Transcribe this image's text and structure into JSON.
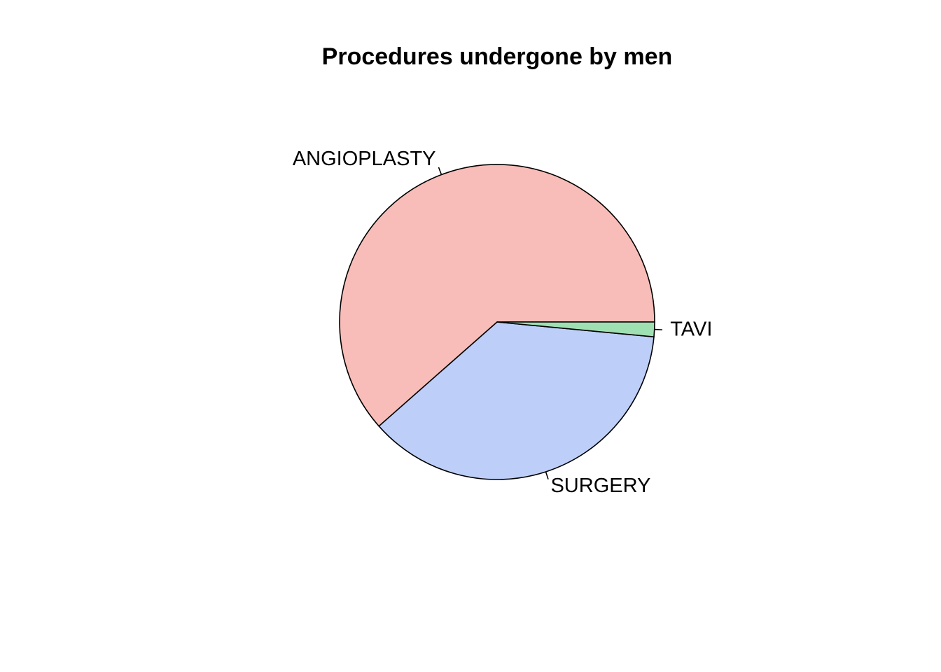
{
  "chart_data": {
    "type": "pie",
    "title": "Procedures undergone by men",
    "categories": [
      "ANGIOPLASTY",
      "SURGERY",
      "TAVI"
    ],
    "values": [
      61.5,
      37.0,
      1.5
    ],
    "colors": [
      "#F8BDB8",
      "#BDCFF8",
      "#9FE0B3"
    ],
    "direction": "counterclockwise",
    "start_angle": "3 o'clock",
    "legend": "none"
  }
}
